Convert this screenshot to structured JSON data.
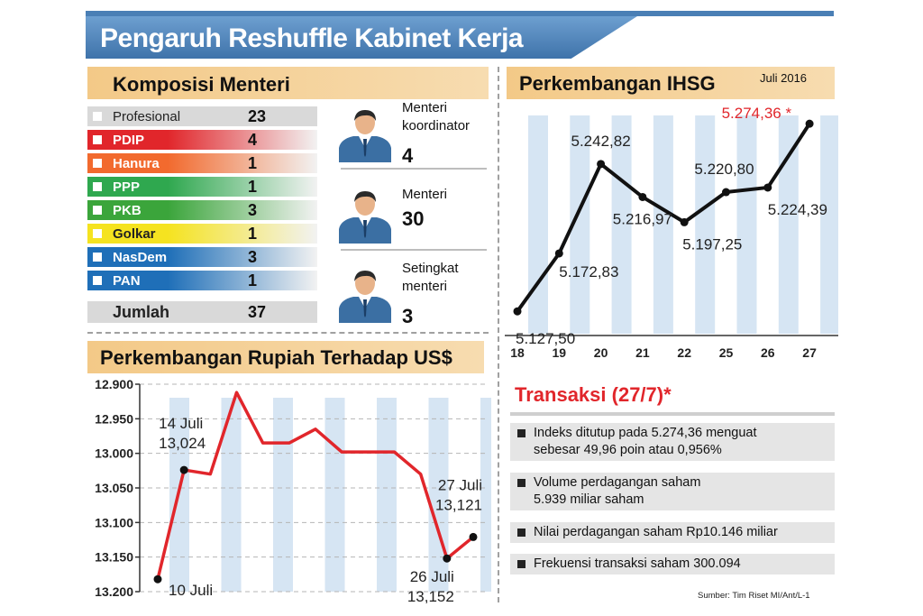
{
  "title": "Pengaruh Reshuffle Kabinet Kerja",
  "komposisi": {
    "heading": "Komposisi Menteri",
    "rows": [
      {
        "label": "Profesional",
        "value": "23",
        "color": "#d9d9d9"
      },
      {
        "label": "PDIP",
        "value": "4",
        "color": "#e1262b"
      },
      {
        "label": "Hanura",
        "value": "1",
        "color": "#f26a2e"
      },
      {
        "label": "PPP",
        "value": "1",
        "color": "#2fa84f"
      },
      {
        "label": "PKB",
        "value": "3",
        "color": "#3ba53b"
      },
      {
        "label": "Golkar",
        "value": "1",
        "color": "#f5e320"
      },
      {
        "label": "NasDem",
        "value": "3",
        "color": "#1f6fb8"
      },
      {
        "label": "PAN",
        "value": "1",
        "color": "#1f6fb8"
      }
    ],
    "total_label": "Jumlah",
    "total_value": "37",
    "ministers": [
      {
        "label_line1": "Menteri",
        "label_line2": "koordinator",
        "value": "4"
      },
      {
        "label_line1": "Menteri",
        "label_line2": "",
        "value": "30"
      },
      {
        "label_line1": "Setingkat",
        "label_line2": "menteri",
        "value": "3"
      }
    ]
  },
  "chart_data": [
    {
      "type": "line",
      "title": "Perkembangan IHSG",
      "subtitle": "Juli 2016",
      "categories": [
        "18",
        "19",
        "20",
        "21",
        "22",
        "25",
        "26",
        "27"
      ],
      "values": [
        5127.5,
        5172.83,
        5242.82,
        5216.97,
        5197.25,
        5220.8,
        5224.39,
        5274.36
      ],
      "data_labels": [
        "5.127,50",
        "5.172,83",
        "5.242,82",
        "5.216,97",
        "5.197,25",
        "5.220,80",
        "5.224,39",
        "5.274,36 *"
      ],
      "highlight_color": "#e1262b",
      "line_color": "#111111"
    },
    {
      "type": "line",
      "title": "Perkembangan Rupiah Terhadap US$",
      "yticks": [
        "12.900",
        "12.950",
        "13.000",
        "13.050",
        "13.100",
        "13.150",
        "13.200"
      ],
      "ylim": [
        13200,
        12900
      ],
      "y_inverted": true,
      "values": [
        13182,
        13024,
        13030,
        12912,
        12985,
        12985,
        12965,
        12998,
        12998,
        12998,
        13030,
        13152,
        13121
      ],
      "annotations": [
        {
          "date": "10 Juli",
          "value": "13,182"
        },
        {
          "date": "14 Juli",
          "value": "13,024"
        },
        {
          "date": "26 Juli",
          "value": "13,152"
        },
        {
          "date": "27 Juli",
          "value": "13,121"
        }
      ],
      "line_color": "#e1262b"
    }
  ],
  "transaksi": {
    "heading": "Transaksi (27/7)*",
    "items": [
      {
        "line1": "Indeks ditutup pada 5.274,36 menguat",
        "line2": "sebesar 49,96 poin atau 0,956%"
      },
      {
        "line1": "Volume perdagangan saham",
        "line2": "5.939 miliar saham"
      },
      {
        "line1": "Nilai perdagangan saham Rp10.146 miliar",
        "line2": ""
      },
      {
        "line1": "Frekuensi transaksi saham 300.094",
        "line2": ""
      }
    ]
  },
  "source": "Sumber: Tim Riset MI/Ant/L-1"
}
